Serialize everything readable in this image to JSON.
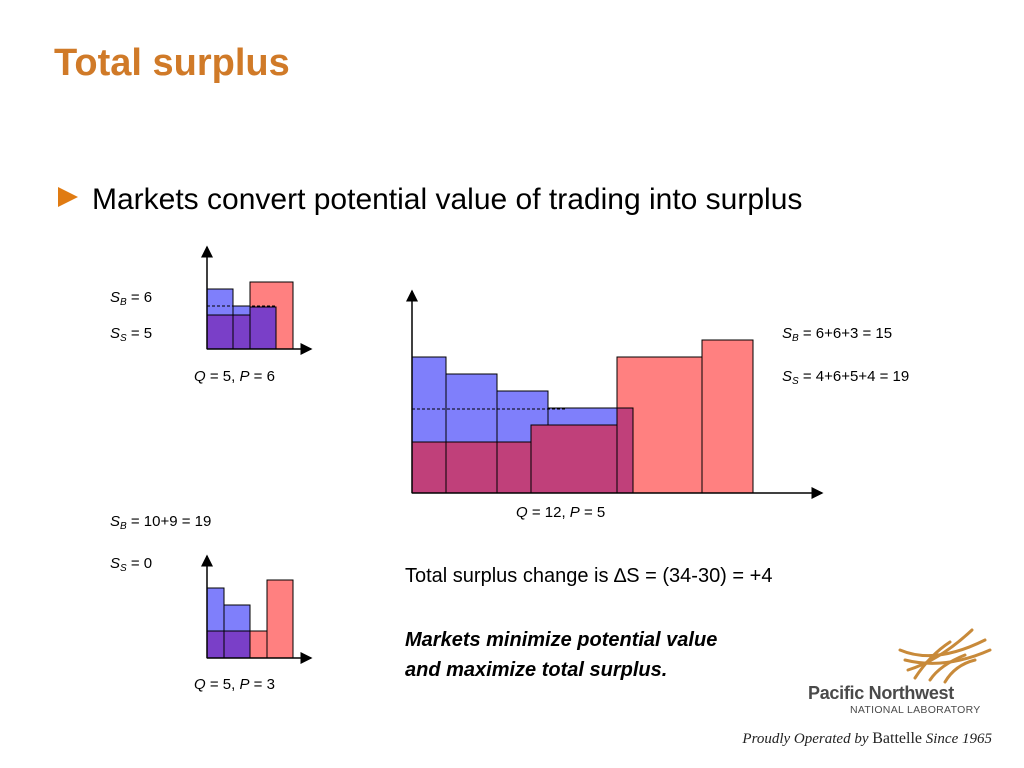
{
  "title": "Total surplus",
  "bullet": "Markets convert potential value of trading into surplus",
  "charts": {
    "top_left": {
      "sb_value": "= 6",
      "ss_value": "= 5",
      "q_value": "= 5,",
      "p_value": "= 6"
    },
    "center": {
      "sb_value": "= 6+6+3 = 15",
      "ss_value": "= 4+6+5+4 = 19",
      "q_value": "= 12,",
      "p_value": "= 5"
    },
    "bottom_left": {
      "sb_value": "= 10+9 = 19",
      "ss_value": "= 0",
      "q_value": "= 5,",
      "p_value": "= 3"
    },
    "symbols": {
      "S": "S",
      "B": "B",
      "SS": "S",
      "Q": "Q",
      "P": "P"
    }
  },
  "change_text": "Total surplus change is ∆S = (34-30) = +4",
  "conclusion_line1": "Markets minimize potential value",
  "conclusion_line2": "and maximize total surplus.",
  "logo": {
    "name": "Pacific Northwest",
    "sub": "NATIONAL LABORATORY",
    "tagline_pre": "Proudly Operated by",
    "tagline_brand": "Battelle",
    "tagline_post": "Since 1965"
  },
  "colors": {
    "title": "#d07a28",
    "bullet": "#e07b12",
    "buyer_blue": "#7f7ffb",
    "seller_red": "#ff8080",
    "overlap_purple": "#7a3fc8",
    "overlap_magenta": "#c0407a"
  }
}
